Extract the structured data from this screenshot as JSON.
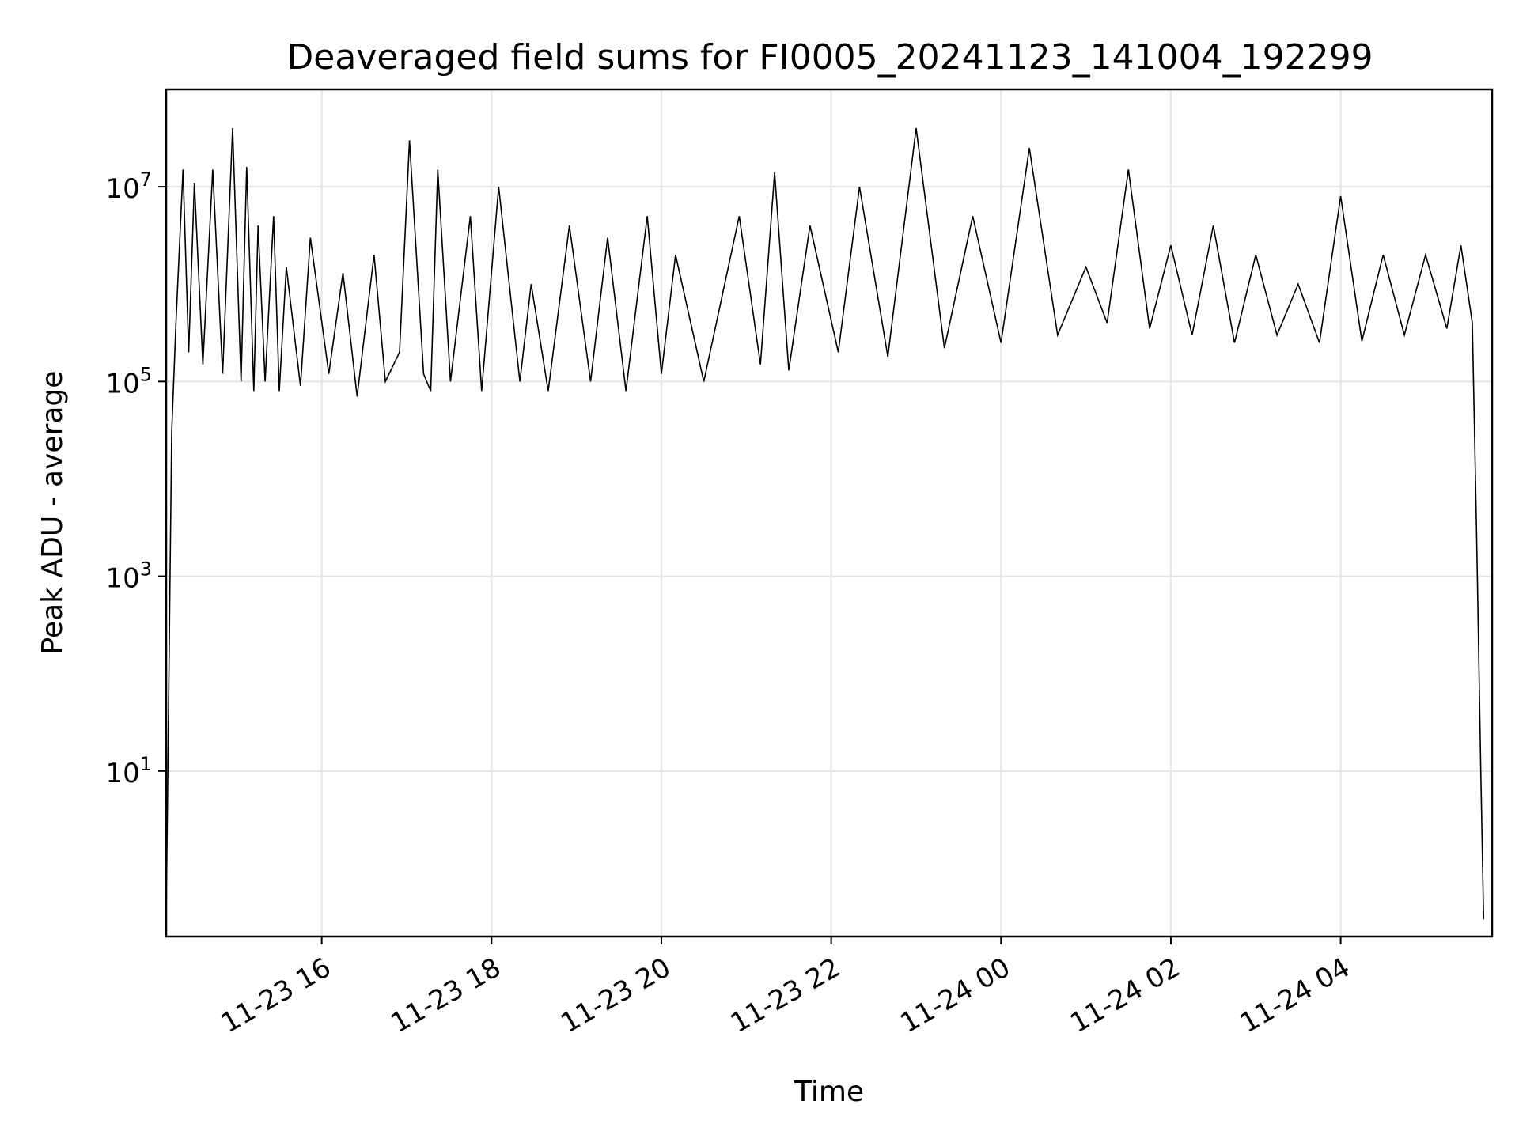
{
  "chart_data": {
    "type": "line",
    "title": "Deaveraged field sums for FI0005_20241123_141004_192299",
    "xlabel": "Time",
    "ylabel": "Peak ADU - average",
    "yscale": "log",
    "xlim": [
      "2024-11-23T14:10:04",
      "2024-11-24T05:47:00"
    ],
    "ylim": [
      0.2,
      100000000
    ],
    "x_ticks": [
      {
        "value": "2024-11-23T16:00:00",
        "label": "11-23 16"
      },
      {
        "value": "2024-11-23T18:00:00",
        "label": "11-23 18"
      },
      {
        "value": "2024-11-23T20:00:00",
        "label": "11-23 20"
      },
      {
        "value": "2024-11-23T22:00:00",
        "label": "11-23 22"
      },
      {
        "value": "2024-11-24T00:00:00",
        "label": "11-24 00"
      },
      {
        "value": "2024-11-24T02:00:00",
        "label": "11-24 02"
      },
      {
        "value": "2024-11-24T04:00:00",
        "label": "11-24 04"
      }
    ],
    "y_ticks": [
      {
        "value": 10,
        "base": "10",
        "exp": "1"
      },
      {
        "value": 1000,
        "base": "10",
        "exp": "3"
      },
      {
        "value": 100000,
        "base": "10",
        "exp": "5"
      },
      {
        "value": 10000000,
        "base": "10",
        "exp": "7"
      }
    ],
    "grid": true,
    "line_color": "#000000",
    "series": [
      {
        "x": [
          "2024-11-23T14:10:04",
          "2024-11-23T14:14:00",
          "2024-11-23T14:17:00",
          "2024-11-23T14:22:00",
          "2024-11-23T14:26:00",
          "2024-11-23T14:30:00",
          "2024-11-23T14:36:00",
          "2024-11-23T14:43:00",
          "2024-11-23T14:50:00",
          "2024-11-23T14:57:00",
          "2024-11-23T15:03:00",
          "2024-11-23T15:07:00",
          "2024-11-23T15:12:00",
          "2024-11-23T15:15:00",
          "2024-11-23T15:20:00",
          "2024-11-23T15:26:00",
          "2024-11-23T15:30:00",
          "2024-11-23T15:35:00",
          "2024-11-23T15:45:00",
          "2024-11-23T15:52:00",
          "2024-11-23T16:05:00",
          "2024-11-23T16:15:00",
          "2024-11-23T16:25:00",
          "2024-11-23T16:37:00",
          "2024-11-23T16:45:00",
          "2024-11-23T16:55:00",
          "2024-11-23T17:02:00",
          "2024-11-23T17:12:00",
          "2024-11-23T17:17:00",
          "2024-11-23T17:22:00",
          "2024-11-23T17:31:00",
          "2024-11-23T17:45:00",
          "2024-11-23T17:53:00",
          "2024-11-23T18:05:00",
          "2024-11-23T18:20:00",
          "2024-11-23T18:28:00",
          "2024-11-23T18:40:00",
          "2024-11-23T18:55:00",
          "2024-11-23T19:10:00",
          "2024-11-23T19:22:00",
          "2024-11-23T19:35:00",
          "2024-11-23T19:50:00",
          "2024-11-23T20:00:00",
          "2024-11-23T20:10:00",
          "2024-11-23T20:30:00",
          "2024-11-23T20:55:00",
          "2024-11-23T21:10:00",
          "2024-11-23T21:20:00",
          "2024-11-23T21:30:00",
          "2024-11-23T21:45:00",
          "2024-11-23T22:05:00",
          "2024-11-23T22:20:00",
          "2024-11-23T22:40:00",
          "2024-11-23T23:00:00",
          "2024-11-23T23:20:00",
          "2024-11-23T23:40:00",
          "2024-11-24T00:00:00",
          "2024-11-24T00:20:00",
          "2024-11-24T00:40:00",
          "2024-11-24T01:00:00",
          "2024-11-24T01:15:00",
          "2024-11-24T01:30:00",
          "2024-11-24T01:45:00",
          "2024-11-24T02:00:00",
          "2024-11-24T02:15:00",
          "2024-11-24T02:30:00",
          "2024-11-24T02:45:00",
          "2024-11-24T03:00:00",
          "2024-11-24T03:15:00",
          "2024-11-24T03:30:00",
          "2024-11-24T03:45:00",
          "2024-11-24T04:00:00",
          "2024-11-24T04:15:00",
          "2024-11-24T04:30:00",
          "2024-11-24T04:45:00",
          "2024-11-24T05:00:00",
          "2024-11-24T05:15:00",
          "2024-11-24T05:25:00",
          "2024-11-24T05:33:00",
          "2024-11-24T05:36:00",
          "2024-11-24T05:39:00",
          "2024-11-24T05:41:00"
        ],
        "y": [
          0.3,
          30000,
          400000,
          15000000,
          200000,
          11000000,
          150000,
          15000000,
          120000,
          40000000,
          100000,
          16000000,
          80000,
          4000000,
          100000,
          5000000,
          80000,
          1500000,
          90000,
          3000000,
          120000,
          1300000,
          70000,
          2000000,
          100000,
          200000,
          30000000,
          120000,
          80000,
          15000000,
          100000,
          5000000,
          80000,
          10000000,
          100000,
          1000000,
          80000,
          4000000,
          100000,
          3000000,
          80000,
          5000000,
          120000,
          2000000,
          100000,
          5000000,
          150000,
          14000000,
          130000,
          4000000,
          200000,
          10000000,
          180000,
          40000000,
          220000,
          5000000,
          250000,
          25000000,
          300000,
          1500000,
          400000,
          15000000,
          350000,
          2500000,
          300000,
          4000000,
          250000,
          2000000,
          300000,
          1000000,
          250000,
          8000000,
          260000,
          2000000,
          300000,
          2000000,
          350000,
          2500000,
          400000,
          3000,
          10,
          0.3
        ]
      }
    ]
  }
}
